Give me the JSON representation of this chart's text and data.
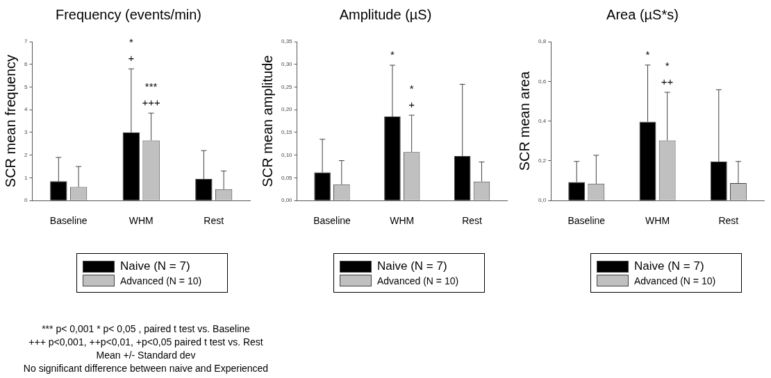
{
  "chart_data": [
    {
      "type": "bar",
      "title": "Frequency (events/min)",
      "ylabel": "SCR mean frequency",
      "categories": [
        "Baseline",
        "WHM",
        "Rest"
      ],
      "series": [
        {
          "name": "Naive (N = 7)",
          "color": "#000000",
          "values": [
            0.85,
            3.0,
            0.95
          ],
          "errors": [
            [
              0.85,
              1.9
            ],
            [
              3.0,
              5.8
            ],
            [
              0.95,
              2.2
            ]
          ]
        },
        {
          "name": "Advanced (N = 10)",
          "color": "#c0c0c0",
          "values": [
            0.6,
            2.65,
            0.5
          ],
          "errors": [
            [
              0.6,
              1.5
            ],
            [
              2.65,
              3.85
            ],
            [
              0.5,
              1.3
            ]
          ]
        }
      ],
      "ylim": [
        0,
        7
      ],
      "yticks": [
        0,
        1,
        2,
        3,
        4,
        5,
        6,
        7
      ],
      "grid": false,
      "legend": "bottom",
      "annotations": [
        "*",
        "+",
        "***",
        "+++",
        "*** p< 0,001  * p< 0,05 , paired t test vs. Baseline",
        "+++ p<0,001, ++p<0,01, +p<0,05 paired t test vs. Rest",
        "Mean +/- Standard dev",
        "No significant difference between naive and Experienced"
      ]
    },
    {
      "type": "bar",
      "title": "Amplitude (µS)",
      "ylabel": "SCR mean amplitude",
      "categories": [
        "Baseline",
        "WHM",
        "Rest"
      ],
      "series": [
        {
          "name": "Naive (N = 7)",
          "color": "#000000",
          "values": [
            0.062,
            0.185,
            0.098
          ],
          "errors": [
            [
              0.062,
              0.135
            ],
            [
              0.185,
              0.298
            ],
            [
              0.098,
              0.256
            ]
          ]
        },
        {
          "name": "Advanced (N = 10)",
          "color": "#c0c0c0",
          "values": [
            0.036,
            0.107,
            0.042
          ],
          "errors": [
            [
              0.036,
              0.088
            ],
            [
              0.107,
              0.188
            ],
            [
              0.042,
              0.085
            ]
          ]
        }
      ],
      "ylim": [
        0,
        0.35
      ],
      "yticks": [
        {
          "value": 0,
          "label": "0,00"
        },
        {
          "value": 0.05,
          "label": "0,05"
        },
        {
          "value": 0.1,
          "label": "0,10"
        },
        {
          "value": 0.15,
          "label": "0,15"
        },
        {
          "value": 0.2,
          "label": "0,20"
        },
        {
          "value": 0.25,
          "label": "0,25"
        },
        {
          "value": 0.3,
          "label": "0,30"
        },
        {
          "value": 0.35,
          "label": "0,35"
        }
      ],
      "grid": false,
      "legend": "bottom",
      "annotations": [
        "*",
        "*",
        "+"
      ]
    },
    {
      "type": "bar",
      "title": "Area (µS*s)",
      "ylabel": "SCR mean area",
      "categories": [
        "Baseline",
        "WHM",
        "Rest"
      ],
      "series": [
        {
          "name": "Naive (N = 7)",
          "color": "#000000",
          "values": [
            0.093,
            0.397,
            0.196
          ],
          "errors": [
            [
              0.093,
              0.197
            ],
            [
              0.397,
              0.682
            ],
            [
              0.196,
              0.558
            ]
          ]
        },
        {
          "name": "Advanced (N = 10)",
          "color": "#c0c0c0",
          "values": [
            0.085,
            0.303,
            0.088
          ],
          "errors": [
            [
              0.085,
              0.228
            ],
            [
              0.303,
              0.545
            ],
            [
              0.088,
              0.197
            ]
          ]
        }
      ],
      "ylim": [
        0,
        0.8
      ],
      "yticks": [
        {
          "value": 0,
          "label": "0,0"
        },
        {
          "value": 0.2,
          "label": "0,2"
        },
        {
          "value": 0.4,
          "label": "0,4"
        },
        {
          "value": 0.6,
          "label": "0,6"
        },
        {
          "value": 0.8,
          "label": "0,8"
        }
      ],
      "grid": false,
      "legend": "bottom",
      "annotations": [
        "*",
        "*",
        "++"
      ]
    }
  ]
}
